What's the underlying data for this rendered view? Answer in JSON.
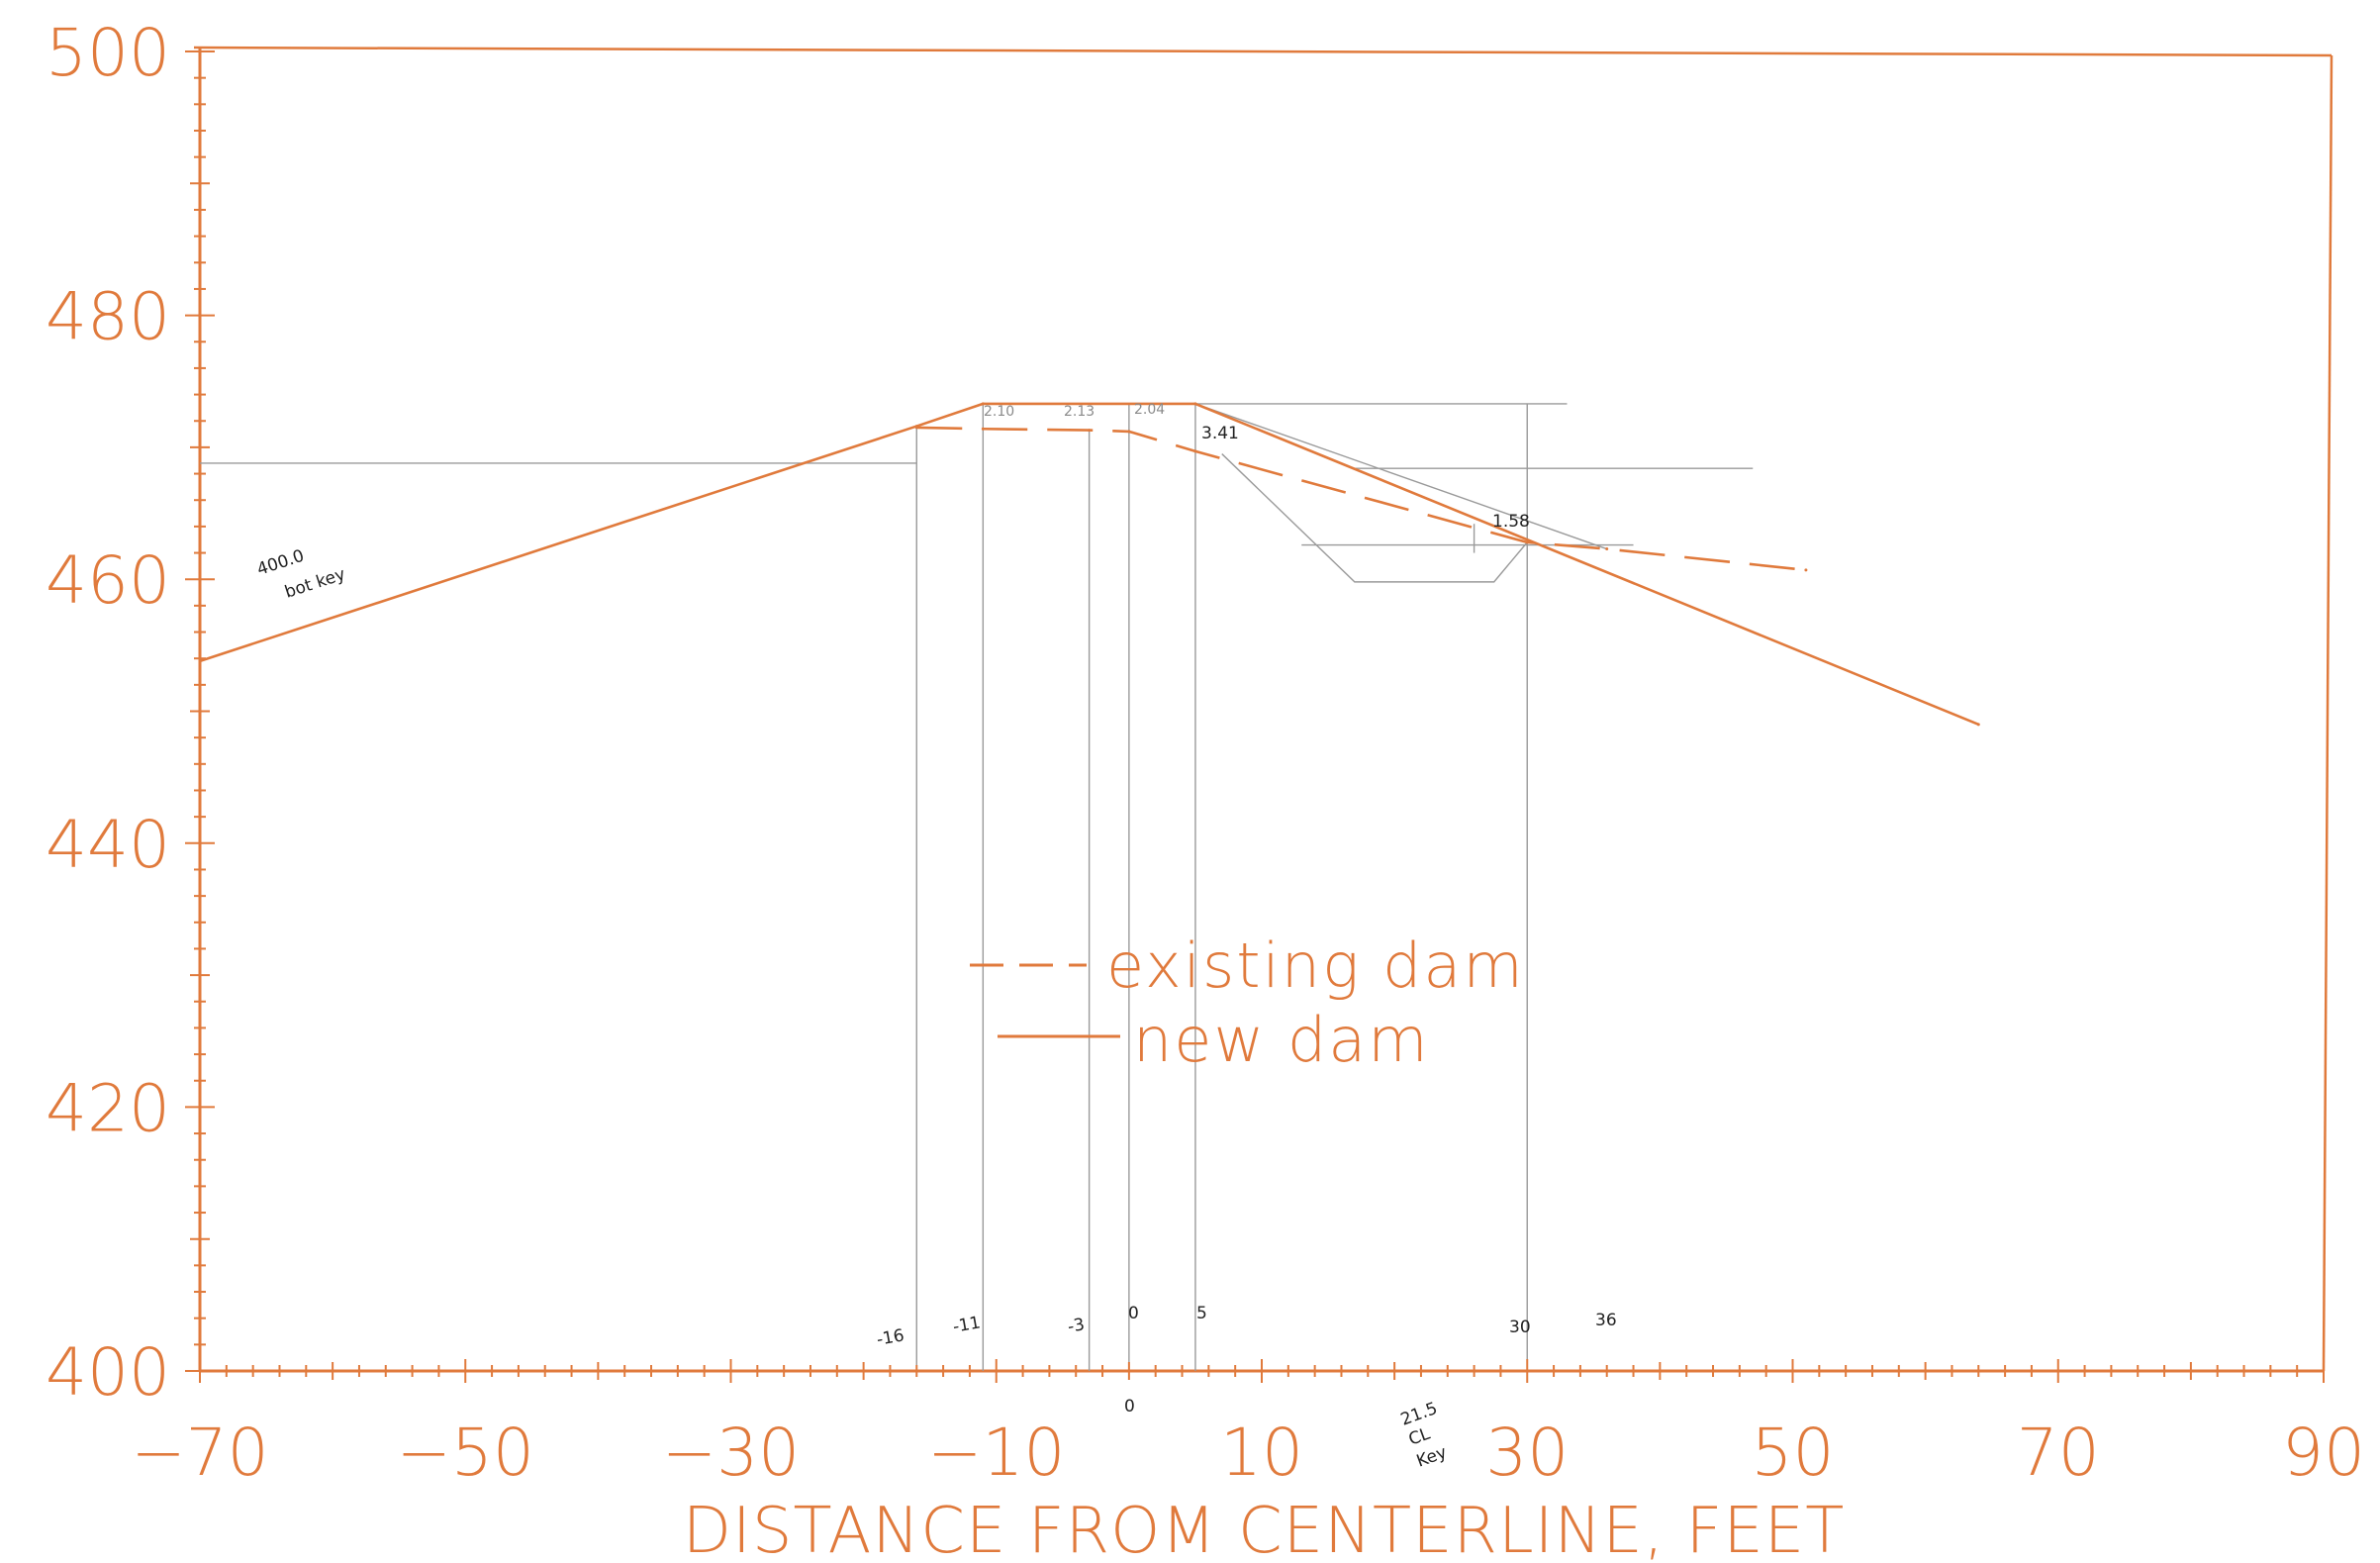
{
  "colors": {
    "accent": "#e07a3c",
    "pencil": "#9a9a9a",
    "ink": "#222222"
  },
  "chart_data": {
    "type": "line",
    "title": "",
    "xlabel": "DISTANCE FROM CENTERLINE, FEET",
    "ylabel": "",
    "xlim": [
      -70,
      90
    ],
    "ylim": [
      400,
      500
    ],
    "x_ticks": [
      -70,
      -50,
      -30,
      -10,
      10,
      30,
      50,
      70,
      90
    ],
    "x_tick_labels": [
      "−70",
      "−50",
      "−30",
      "−10",
      "10",
      "30",
      "50",
      "70",
      "90"
    ],
    "y_ticks": [
      400,
      420,
      440,
      460,
      480,
      500
    ],
    "y_tick_labels": [
      "400",
      "420",
      "440",
      "460",
      "480",
      "500"
    ],
    "legend_position": "center",
    "series": [
      {
        "name": "existing dam",
        "style": "dashed",
        "x": [
          -16,
          -11,
          -3,
          0,
          5,
          30,
          36,
          51
        ],
        "y": [
          471.5,
          471.4,
          471.3,
          471.2,
          469.7,
          462.8,
          462.3,
          460.7
        ]
      },
      {
        "name": "new dam",
        "style": "solid",
        "x": [
          -70,
          -16,
          -11,
          5,
          64
        ],
        "y": [
          453.8,
          471.6,
          473.3,
          473.3,
          449.0
        ]
      }
    ],
    "annotations": {
      "key_note": [
        "400.0",
        "bot key"
      ],
      "station_labels": [
        "-16",
        "-11",
        "-3",
        "0",
        "5",
        "30",
        "36"
      ],
      "zero_mark": "0",
      "crest_depths": [
        "2.10",
        "2.13",
        "2.04",
        "3.41",
        "1.58"
      ],
      "key_center": [
        "21.5",
        "CL",
        "Key"
      ]
    }
  }
}
